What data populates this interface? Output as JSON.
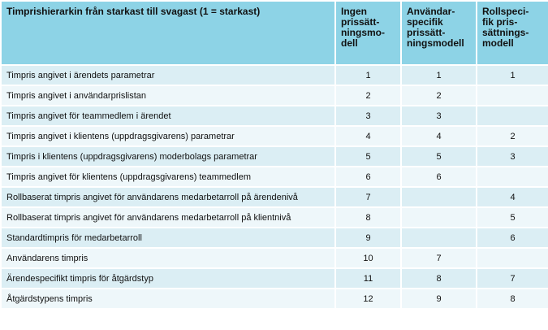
{
  "table": {
    "header": [
      "Timprishierarkin från starkast till svagast (1 = starkast)",
      "Ingen\nprissätt-\nningsmo-\ndell",
      "Användar-\nspecifik\nprissätt-\nningsmodell",
      "Rollspeci-\nfik pris-\nsättnings-\nmodell"
    ],
    "rows": [
      [
        "Timpris angivet i ärendets parametrar",
        1,
        1,
        1
      ],
      [
        "Timpris angivet i användarprislistan",
        2,
        2,
        null
      ],
      [
        "Timpris angivet för teammedlem i ärendet",
        3,
        3,
        null
      ],
      [
        "Timpris angivet i klientens (uppdragsgivarens) parametrar",
        4,
        4,
        2
      ],
      [
        "Timpris i klientens (uppdragsgivarens) moderbolags parametrar",
        5,
        5,
        3
      ],
      [
        "Timpris angivet för klientens (uppdragsgivarens) teammedlem",
        6,
        6,
        null
      ],
      [
        "Rollbaserat timpris angivet för användarens medarbetarroll på ärendenivå",
        7,
        null,
        4
      ],
      [
        "Rollbaserat timpris angivet för användarens medarbetarroll på klientnivå",
        8,
        null,
        5
      ],
      [
        "Standardtimpris för medarbetarroll",
        9,
        null,
        6
      ],
      [
        "Användarens timpris",
        10,
        7,
        null
      ],
      [
        "Ärendespecifikt timpris för åtgärdstyp",
        11,
        8,
        7
      ],
      [
        "Åtgärdstypens timpris",
        12,
        9,
        8
      ]
    ]
  }
}
